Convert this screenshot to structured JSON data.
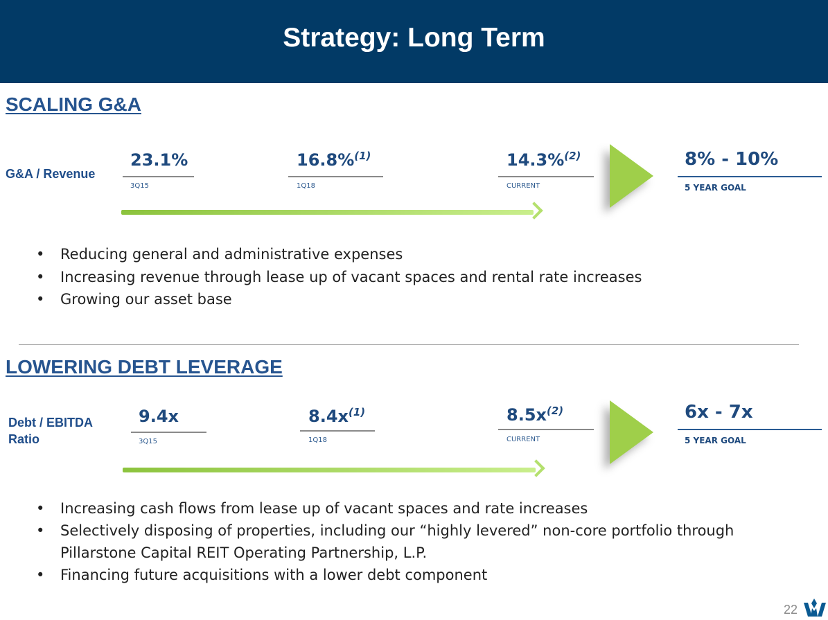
{
  "header": {
    "title": "Strategy: Long Term"
  },
  "sections": [
    {
      "heading": "SCALING G&A",
      "metric_label": "G&A / Revenue",
      "points": [
        {
          "value": "23.1%",
          "note": "",
          "period": "3Q15"
        },
        {
          "value": "16.8%",
          "note": "(1)",
          "period": "1Q18"
        },
        {
          "value": "14.3%",
          "note": "(2)",
          "period": "CURRENT"
        }
      ],
      "goal": {
        "value": "8% - 10%",
        "label": "5 YEAR GOAL"
      },
      "bullets": [
        "Reducing general and administrative expenses",
        "Increasing revenue through lease up of vacant spaces and rental rate increases",
        "Growing our asset base"
      ]
    },
    {
      "heading": "LOWERING DEBT LEVERAGE",
      "metric_label_line1": "Debt / EBITDA",
      "metric_label_line2": "Ratio",
      "points": [
        {
          "value": "9.4x",
          "note": "",
          "period": "3Q15"
        },
        {
          "value": "8.4x",
          "note": "(1)",
          "period": "1Q18"
        },
        {
          "value": "8.5x",
          "note": "(2)",
          "period": "CURRENT"
        }
      ],
      "goal": {
        "value": "6x - 7x",
        "label": "5 YEAR GOAL"
      },
      "bullets": [
        "Increasing cash flows from lease up of vacant spaces and rate increases",
        "Selectively disposing of properties, including our “highly levered” non-core portfolio through",
        "Pillarstone Capital REIT Operating Partnership, L.P.",
        "Financing future acquisitions with a lower debt component"
      ]
    }
  ],
  "footer": {
    "page_number": "22",
    "logo": "W-logo"
  },
  "colors": {
    "header": "#023a66",
    "accent_green": "#9fcf4a",
    "text_blue": "#1f4a7e"
  }
}
